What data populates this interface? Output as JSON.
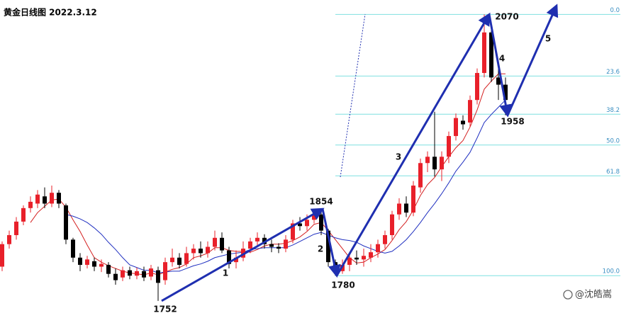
{
  "chart_data": {
    "type": "candlestick",
    "title": "黄金日线图 2022.3.12",
    "ylim": [
      1733,
      2086
    ],
    "up_color": "#e8202a",
    "down_color": "#000000",
    "open": [
      1790,
      1815,
      1825,
      1840,
      1855,
      1860,
      1868,
      1860,
      1872,
      1858,
      1820,
      1800,
      1792,
      1796,
      1790,
      1792,
      1782,
      1778,
      1786,
      1780,
      1785,
      1779,
      1786,
      1775,
      1795,
      1800,
      1793,
      1805,
      1810,
      1805,
      1812,
      1822,
      1808,
      1795,
      1800,
      1810,
      1818,
      1822,
      1815,
      1812,
      1810,
      1820,
      1838,
      1835,
      1842,
      1848,
      1830,
      1795,
      1785,
      1792,
      1800,
      1798,
      1800,
      1806,
      1815,
      1825,
      1848,
      1860,
      1850,
      1878,
      1905,
      1912,
      1898,
      1912,
      1935,
      1952,
      1950,
      1975,
      2005,
      2050,
      2000,
      1992
    ],
    "close": [
      1815,
      1825,
      1840,
      1855,
      1862,
      1870,
      1860,
      1872,
      1860,
      1820,
      1800,
      1792,
      1798,
      1790,
      1793,
      1782,
      1775,
      1786,
      1780,
      1785,
      1778,
      1788,
      1772,
      1795,
      1800,
      1792,
      1805,
      1810,
      1805,
      1812,
      1822,
      1808,
      1793,
      1800,
      1810,
      1818,
      1822,
      1815,
      1812,
      1810,
      1820,
      1838,
      1835,
      1842,
      1848,
      1830,
      1795,
      1785,
      1792,
      1800,
      1798,
      1802,
      1806,
      1815,
      1825,
      1848,
      1860,
      1850,
      1880,
      1905,
      1912,
      1898,
      1912,
      1935,
      1955,
      1948,
      1975,
      2005,
      2050,
      2000,
      1992,
      1975
    ],
    "high": [
      1818,
      1830,
      1845,
      1858,
      1868,
      1875,
      1878,
      1880,
      1875,
      1860,
      1822,
      1805,
      1802,
      1800,
      1798,
      1795,
      1788,
      1790,
      1790,
      1789,
      1790,
      1792,
      1790,
      1800,
      1810,
      1805,
      1812,
      1815,
      1818,
      1818,
      1830,
      1828,
      1812,
      1808,
      1818,
      1822,
      1828,
      1826,
      1820,
      1816,
      1825,
      1842,
      1845,
      1848,
      1854,
      1852,
      1832,
      1798,
      1798,
      1805,
      1808,
      1810,
      1815,
      1820,
      1830,
      1852,
      1866,
      1868,
      1885,
      1910,
      1918,
      1962,
      1918,
      1940,
      1960,
      1958,
      1980,
      2010,
      2070,
      2058,
      2010,
      2000
    ],
    "low": [
      1785,
      1810,
      1820,
      1836,
      1850,
      1855,
      1855,
      1856,
      1855,
      1815,
      1795,
      1785,
      1788,
      1785,
      1784,
      1778,
      1770,
      1774,
      1776,
      1776,
      1774,
      1775,
      1752,
      1770,
      1790,
      1788,
      1790,
      1798,
      1800,
      1800,
      1808,
      1805,
      1788,
      1788,
      1796,
      1805,
      1812,
      1810,
      1806,
      1805,
      1806,
      1816,
      1830,
      1830,
      1838,
      1825,
      1790,
      1780,
      1782,
      1785,
      1792,
      1790,
      1795,
      1800,
      1810,
      1820,
      1842,
      1845,
      1846,
      1872,
      1895,
      1890,
      1885,
      1905,
      1930,
      1942,
      1945,
      1970,
      2000,
      1995,
      1975,
      1958
    ],
    "series": [
      {
        "color": "#d42020",
        "values": [
          null,
          null,
          null,
          null,
          1839,
          1850,
          1857,
          1864,
          1865,
          1856,
          1842,
          1829,
          1814,
          1800,
          1795,
          1791,
          1788,
          1785,
          1783,
          1782,
          1781,
          1783,
          1781,
          1784,
          1787,
          1789,
          1793,
          1800,
          1802,
          1805,
          1811,
          1811,
          1808,
          1807,
          1807,
          1806,
          1809,
          1813,
          1815,
          1815,
          1816,
          1819,
          1823,
          1829,
          1837,
          1839,
          1830,
          1820,
          1810,
          1800,
          1794,
          1795,
          1800,
          1804,
          1809,
          1819,
          1831,
          1840,
          1853,
          1869,
          1881,
          1889,
          1901,
          1912,
          1922,
          1930,
          1945,
          1964,
          1987,
          1996,
          2004,
          2004
        ]
      },
      {
        "color": "#2030c0",
        "values": [
          null,
          null,
          null,
          null,
          null,
          null,
          null,
          null,
          null,
          1848,
          1846,
          1843,
          1839,
          1833,
          1826,
          1817,
          1809,
          1800,
          1792,
          1789,
          1786,
          1786,
          1783,
          1784,
          1785,
          1785,
          1788,
          1791,
          1793,
          1796,
          1800,
          1802,
          1804,
          1805,
          1806,
          1809,
          1810,
          1811,
          1811,
          1811,
          1811,
          1814,
          1818,
          1822,
          1826,
          1828,
          1825,
          1822,
          1820,
          1819,
          1817,
          1813,
          1810,
          1807,
          1805,
          1807,
          1813,
          1820,
          1829,
          1839,
          1850,
          1860,
          1871,
          1883,
          1896,
          1906,
          1917,
          1933,
          1950,
          1959,
          1967,
          1975
        ]
      }
    ],
    "fib_color": "#7fe0e0",
    "fib_levels": [
      {
        "value": 0,
        "label": "0.0"
      },
      {
        "value": 23.6,
        "label": "23.6"
      },
      {
        "value": 38.2,
        "label": "38.2"
      },
      {
        "value": 50,
        "label": "50.0"
      },
      {
        "value": 61.8,
        "label": "61.8"
      },
      {
        "value": 100,
        "label": "100.0"
      }
    ],
    "price_labels": [
      1752,
      1854,
      1780,
      2070,
      1958
    ],
    "wave_labels": [
      "1",
      "2",
      "3",
      "4",
      "5"
    ],
    "arrow_color": "#1f2fb0",
    "watermark": "@沈皓嵩"
  }
}
